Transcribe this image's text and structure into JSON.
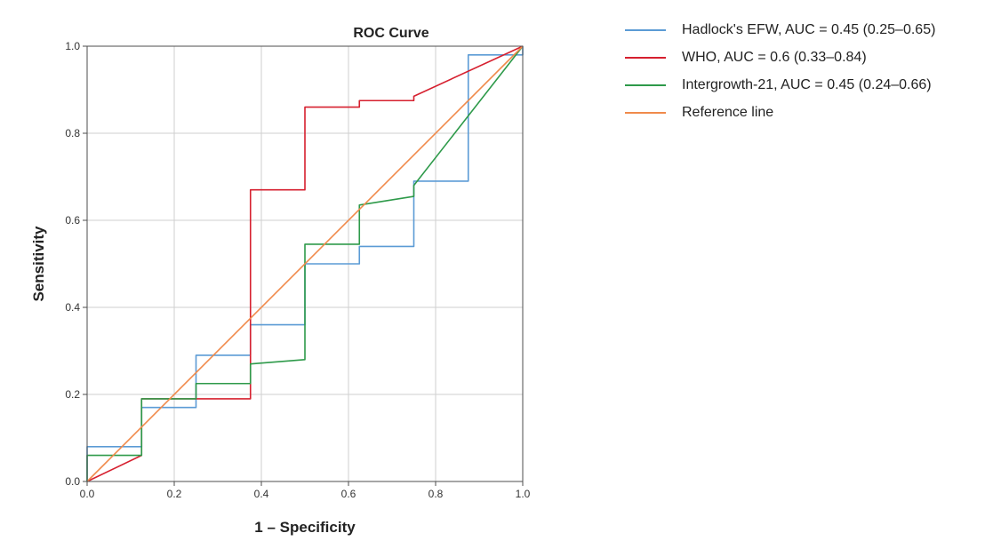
{
  "chart_data": {
    "type": "line",
    "title": "ROC Curve",
    "xlabel": "1 – Specificity",
    "ylabel": "Sensitivity",
    "xlim": [
      0,
      1
    ],
    "ylim": [
      0,
      1
    ],
    "x_ticks": [
      "0.0",
      "0.2",
      "0.4",
      "0.6",
      "0.8",
      "1.0"
    ],
    "y_ticks": [
      "0.0",
      "0.2",
      "0.4",
      "0.6",
      "0.8",
      "1.0"
    ],
    "grid": true,
    "legend_position": "right",
    "series": [
      {
        "name": "Hadlock's EFW, AUC = 0.45 (0.25–0.65)",
        "color": "#5b9bd5",
        "x": [
          0,
          0,
          0.125,
          0.125,
          0.25,
          0.25,
          0.375,
          0.375,
          0.5,
          0.5,
          0.625,
          0.625,
          0.75,
          0.75,
          0.875,
          0.875,
          1,
          1
        ],
        "y": [
          0,
          0.08,
          0.08,
          0.17,
          0.17,
          0.29,
          0.29,
          0.36,
          0.36,
          0.5,
          0.5,
          0.54,
          0.54,
          0.69,
          0.69,
          0.98,
          0.98,
          1
        ]
      },
      {
        "name": "WHO, AUC = 0.6 (0.33–0.84)",
        "color": "#d6202f",
        "x": [
          0,
          0.125,
          0.125,
          0.25,
          0.375,
          0.375,
          0.5,
          0.5,
          0.625,
          0.625,
          0.75,
          0.75,
          1
        ],
        "y": [
          0,
          0.06,
          0.19,
          0.19,
          0.19,
          0.67,
          0.67,
          0.86,
          0.86,
          0.875,
          0.875,
          0.885,
          1
        ]
      },
      {
        "name": "Intergrowth-21, AUC = 0.45 (0.24–0.66)",
        "color": "#2e9a4a",
        "x": [
          0,
          0,
          0.125,
          0.125,
          0.25,
          0.25,
          0.375,
          0.375,
          0.5,
          0.5,
          0.625,
          0.625,
          0.75,
          0.75,
          1
        ],
        "y": [
          0,
          0.06,
          0.06,
          0.19,
          0.19,
          0.225,
          0.225,
          0.27,
          0.28,
          0.545,
          0.545,
          0.635,
          0.655,
          0.68,
          1
        ]
      },
      {
        "name": "Reference line",
        "color": "#f08a4b",
        "x": [
          0,
          1
        ],
        "y": [
          0,
          1
        ]
      }
    ]
  }
}
